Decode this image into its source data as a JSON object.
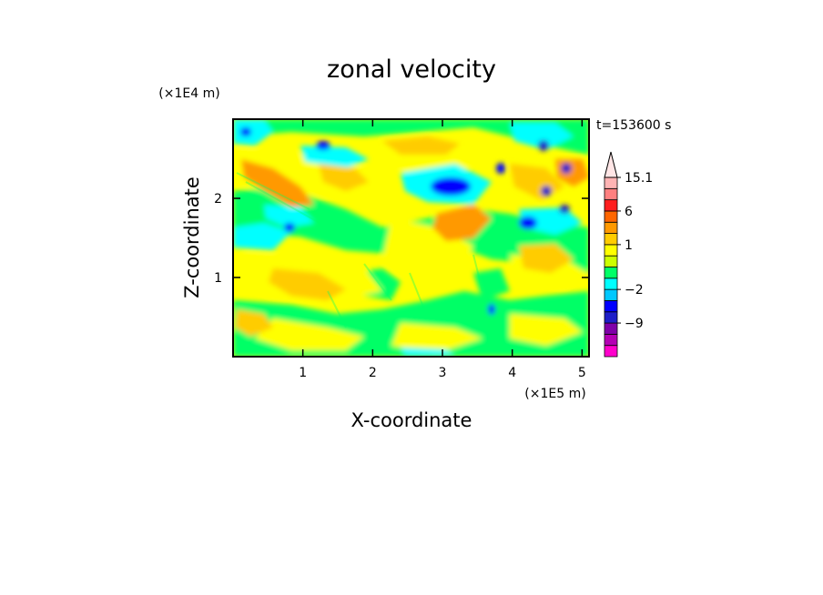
{
  "chart_data": {
    "type": "heatmap",
    "title": "zonal velocity",
    "xlabel": "X-coordinate",
    "ylabel": "Z-coordinate",
    "x_scale_label": "(×1E5 m)",
    "y_scale_label": "(×1E4 m)",
    "time_label": "t=153600 s",
    "xlim": [
      0,
      5.1
    ],
    "ylim": [
      0,
      3
    ],
    "x_ticks": [
      1,
      2,
      3,
      4,
      5
    ],
    "y_ticks": [
      1,
      2
    ],
    "colorbar": {
      "tick_labels": [
        "15.1",
        "6",
        "1",
        "-2",
        "-9"
      ],
      "levels": [
        {
          "value": -15,
          "color": "#ff00cc"
        },
        {
          "value": -12,
          "color": "#b400b4"
        },
        {
          "value": -9,
          "color": "#7f00a8"
        },
        {
          "value": -6,
          "color": "#1e1ec8"
        },
        {
          "value": -4,
          "color": "#0000ff"
        },
        {
          "value": -2,
          "color": "#00c8ff"
        },
        {
          "value": -1,
          "color": "#00ffff"
        },
        {
          "value": 0,
          "color": "#00ff66"
        },
        {
          "value": 0.5,
          "color": "#ccff00"
        },
        {
          "value": 1,
          "color": "#ffff00"
        },
        {
          "value": 2,
          "color": "#ffcc00"
        },
        {
          "value": 3,
          "color": "#ff9900"
        },
        {
          "value": 6,
          "color": "#ff6600"
        },
        {
          "value": 9,
          "color": "#ff1e1e"
        },
        {
          "value": 12,
          "color": "#ff8080"
        },
        {
          "value": 15.1,
          "color": "#ffb4b4"
        },
        {
          "value": 20,
          "color": "#ffe6e6"
        }
      ]
    },
    "grid": false,
    "legend": "right-colorbar"
  }
}
